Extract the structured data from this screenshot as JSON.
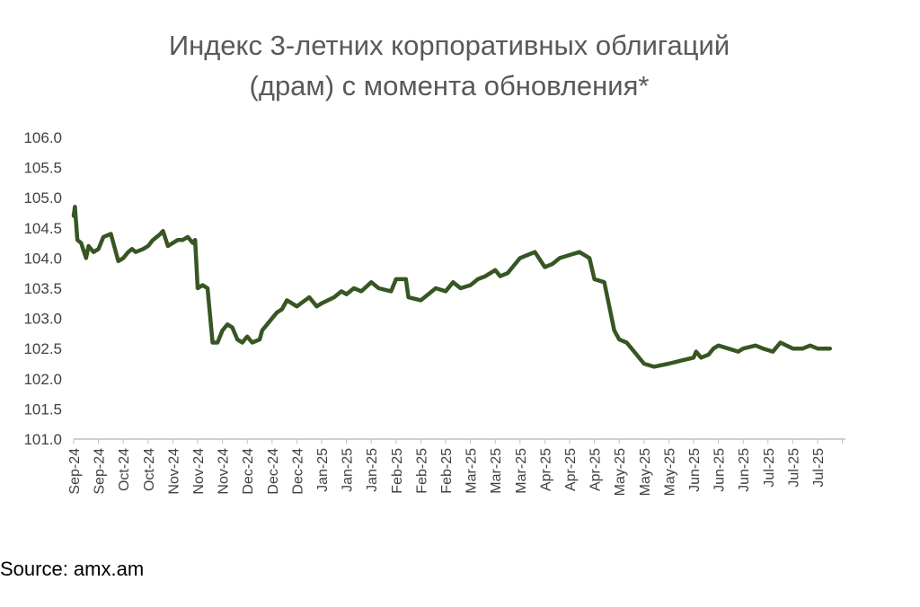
{
  "chart_data": {
    "type": "line",
    "title_lines": [
      "Индекс 3-летних корпоративных облигаций",
      "(драм) с момента обновления*"
    ],
    "xlabel": "",
    "ylabel": "",
    "ylim": [
      101.0,
      106.0
    ],
    "yticks": [
      "101.0",
      "101.5",
      "102.0",
      "102.5",
      "103.0",
      "103.5",
      "104.0",
      "104.5",
      "105.0",
      "105.5",
      "106.0"
    ],
    "x_tick_labels": [
      "Sep-24",
      "Sep-24",
      "Oct-24",
      "Oct-24",
      "Nov-24",
      "Nov-24",
      "Nov-24",
      "Dec-24",
      "Dec-24",
      "Dec-24",
      "Jan-25",
      "Jan-25",
      "Jan-25",
      "Feb-25",
      "Feb-25",
      "Feb-25",
      "Mar-25",
      "Mar-25",
      "Mar-25",
      "Apr-25",
      "Apr-25",
      "Apr-25",
      "May-25",
      "May-25",
      "May-25",
      "Jun-25",
      "Jun-25",
      "Jun-25",
      "Jul-25",
      "Jul-25",
      "Jul-25"
    ],
    "grid": false,
    "legend": "none",
    "line_color": "#375623",
    "series": [
      {
        "x": [
          0,
          0.05,
          0.15,
          0.3,
          0.5,
          0.6,
          0.8,
          1.0,
          1.2,
          1.5,
          1.8,
          2.0,
          2.2,
          2.35,
          2.5,
          2.8,
          3.0,
          3.2,
          3.5,
          3.6,
          3.8,
          4.0,
          4.2,
          4.4,
          4.6,
          4.8,
          4.9,
          5.0,
          5.2,
          5.4,
          5.6,
          5.8,
          6.0,
          6.2,
          6.4,
          6.6,
          6.8,
          6.9,
          7.0,
          7.2,
          7.5,
          7.6,
          7.8,
          8.0,
          8.2,
          8.4,
          8.6,
          9.0,
          9.5,
          9.8,
          10.0,
          10.5,
          10.8,
          11.0,
          11.3,
          11.6,
          12.0,
          12.3,
          12.8,
          13.0,
          13.4,
          13.5,
          14.0,
          14.3,
          14.6,
          15.0,
          15.3,
          15.6,
          16.0,
          16.3,
          16.6,
          17.0,
          17.2,
          17.5,
          17.7,
          18.0,
          18.3,
          18.6,
          19.0,
          19.3,
          19.6,
          20.0,
          20.4,
          20.8,
          21.0,
          21.4,
          21.8,
          22.0,
          22.3,
          22.6,
          23.0,
          23.4,
          24.0,
          24.5,
          25.0,
          25.1,
          25.3,
          25.6,
          25.8,
          26.0,
          26.4,
          26.8,
          27.0,
          27.5,
          27.8,
          28.2,
          28.5,
          29.0,
          29.4,
          29.7,
          30.0,
          30.3,
          30.5
        ],
        "values": [
          104.7,
          104.85,
          104.3,
          104.25,
          104.0,
          104.2,
          104.1,
          104.15,
          104.35,
          104.4,
          103.95,
          104.0,
          104.1,
          104.15,
          104.1,
          104.15,
          104.2,
          104.3,
          104.4,
          104.45,
          104.2,
          104.25,
          104.3,
          104.3,
          104.35,
          104.25,
          104.3,
          103.5,
          103.55,
          103.5,
          102.6,
          102.6,
          102.8,
          102.9,
          102.85,
          102.65,
          102.6,
          102.65,
          102.7,
          102.6,
          102.65,
          102.8,
          102.9,
          103.0,
          103.1,
          103.15,
          103.3,
          103.2,
          103.35,
          103.2,
          103.25,
          103.35,
          103.45,
          103.4,
          103.5,
          103.45,
          103.6,
          103.5,
          103.45,
          103.65,
          103.65,
          103.35,
          103.3,
          103.4,
          103.5,
          103.45,
          103.6,
          103.5,
          103.55,
          103.65,
          103.7,
          103.8,
          103.7,
          103.75,
          103.85,
          104.0,
          104.05,
          104.1,
          103.85,
          103.9,
          104.0,
          104.05,
          104.1,
          104.0,
          103.65,
          103.6,
          102.8,
          102.65,
          102.6,
          102.45,
          102.25,
          102.2,
          102.25,
          102.3,
          102.35,
          102.45,
          102.35,
          102.4,
          102.5,
          102.55,
          102.5,
          102.45,
          102.5,
          102.55,
          102.5,
          102.45,
          102.6,
          102.5,
          102.5,
          102.55,
          102.5,
          102.5,
          102.5
        ]
      }
    ]
  },
  "source_note": "Source: amx.am"
}
